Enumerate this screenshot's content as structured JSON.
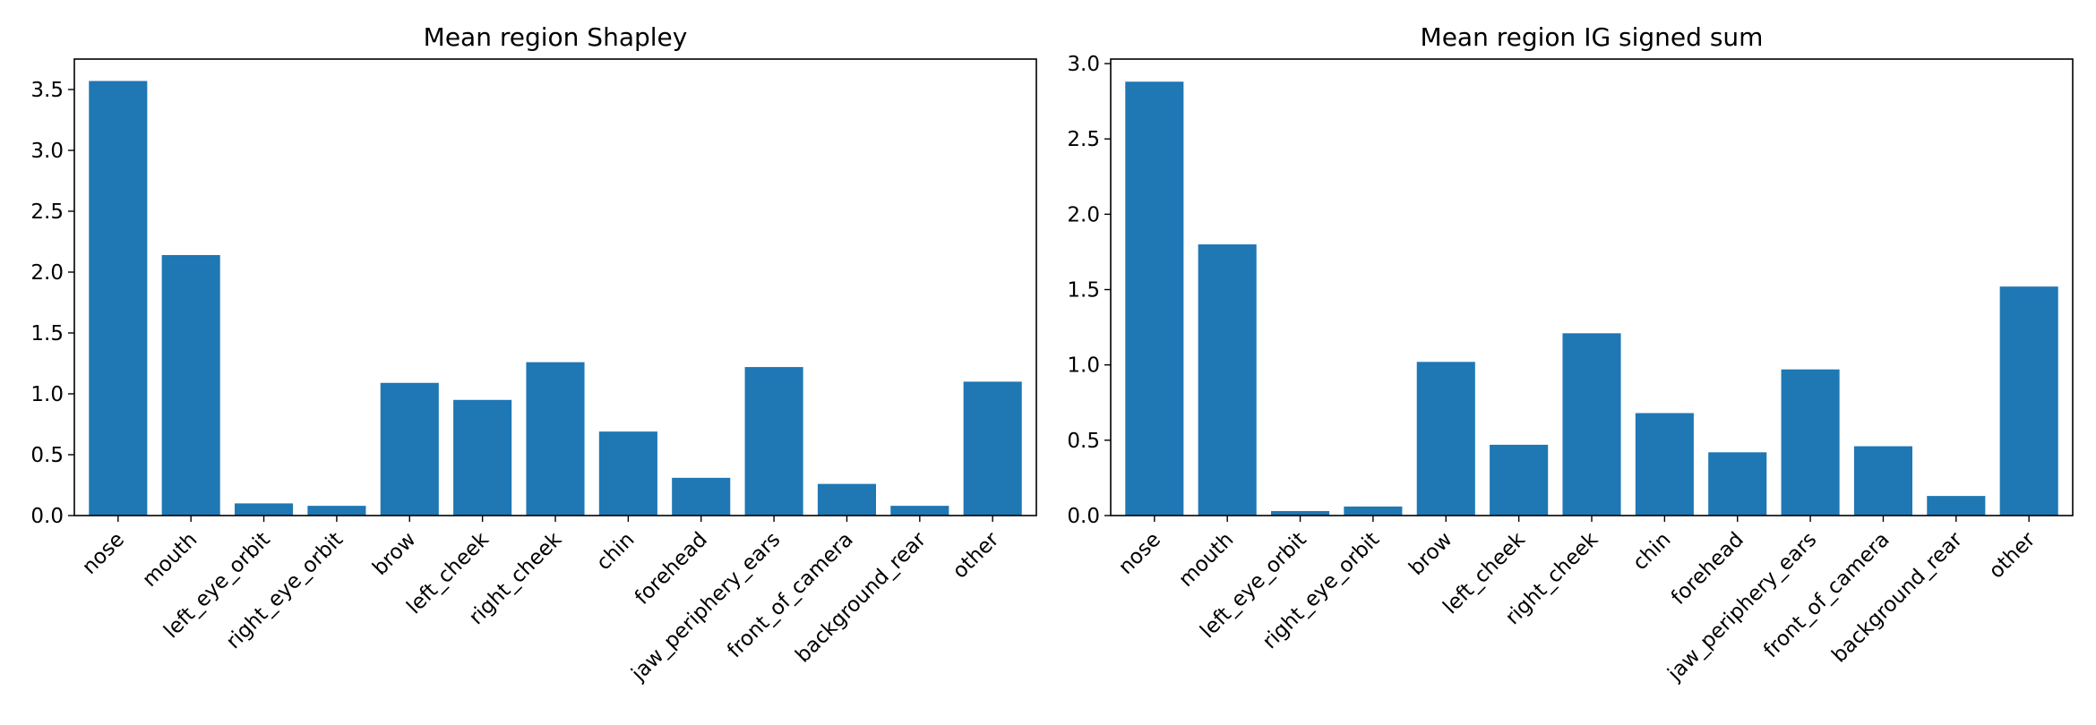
{
  "chart_data": [
    {
      "type": "bar",
      "title": "Mean region Shapley",
      "xlabel": "",
      "ylabel": "",
      "categories": [
        "nose",
        "mouth",
        "left_eye_orbit",
        "right_eye_orbit",
        "brow",
        "left_cheek",
        "right_cheek",
        "chin",
        "forehead",
        "jaw_periphery_ears",
        "front_of_camera",
        "background_rear",
        "other"
      ],
      "values": [
        3.57,
        2.14,
        0.1,
        0.08,
        1.09,
        0.95,
        1.26,
        0.69,
        0.31,
        1.22,
        0.26,
        0.08,
        1.1
      ],
      "ylim": [
        0,
        3.75
      ],
      "yticks": [
        "0.0",
        "0.5",
        "1.0",
        "1.5",
        "2.0",
        "2.5",
        "3.0",
        "3.5"
      ],
      "bar_color": "#1f77b4",
      "grid": false,
      "legend": "none"
    },
    {
      "type": "bar",
      "title": "Mean region IG signed sum",
      "xlabel": "",
      "ylabel": "",
      "categories": [
        "nose",
        "mouth",
        "left_eye_orbit",
        "right_eye_orbit",
        "brow",
        "left_cheek",
        "right_cheek",
        "chin",
        "forehead",
        "jaw_periphery_ears",
        "front_of_camera",
        "background_rear",
        "other"
      ],
      "values": [
        2.88,
        1.8,
        0.03,
        0.06,
        1.02,
        0.47,
        1.21,
        0.68,
        0.42,
        0.97,
        0.46,
        0.13,
        1.52
      ],
      "ylim": [
        0,
        3.03
      ],
      "yticks": [
        "0.0",
        "0.5",
        "1.0",
        "1.5",
        "2.0",
        "2.5",
        "3.0"
      ],
      "bar_color": "#1f77b4",
      "grid": false,
      "legend": "none"
    }
  ]
}
